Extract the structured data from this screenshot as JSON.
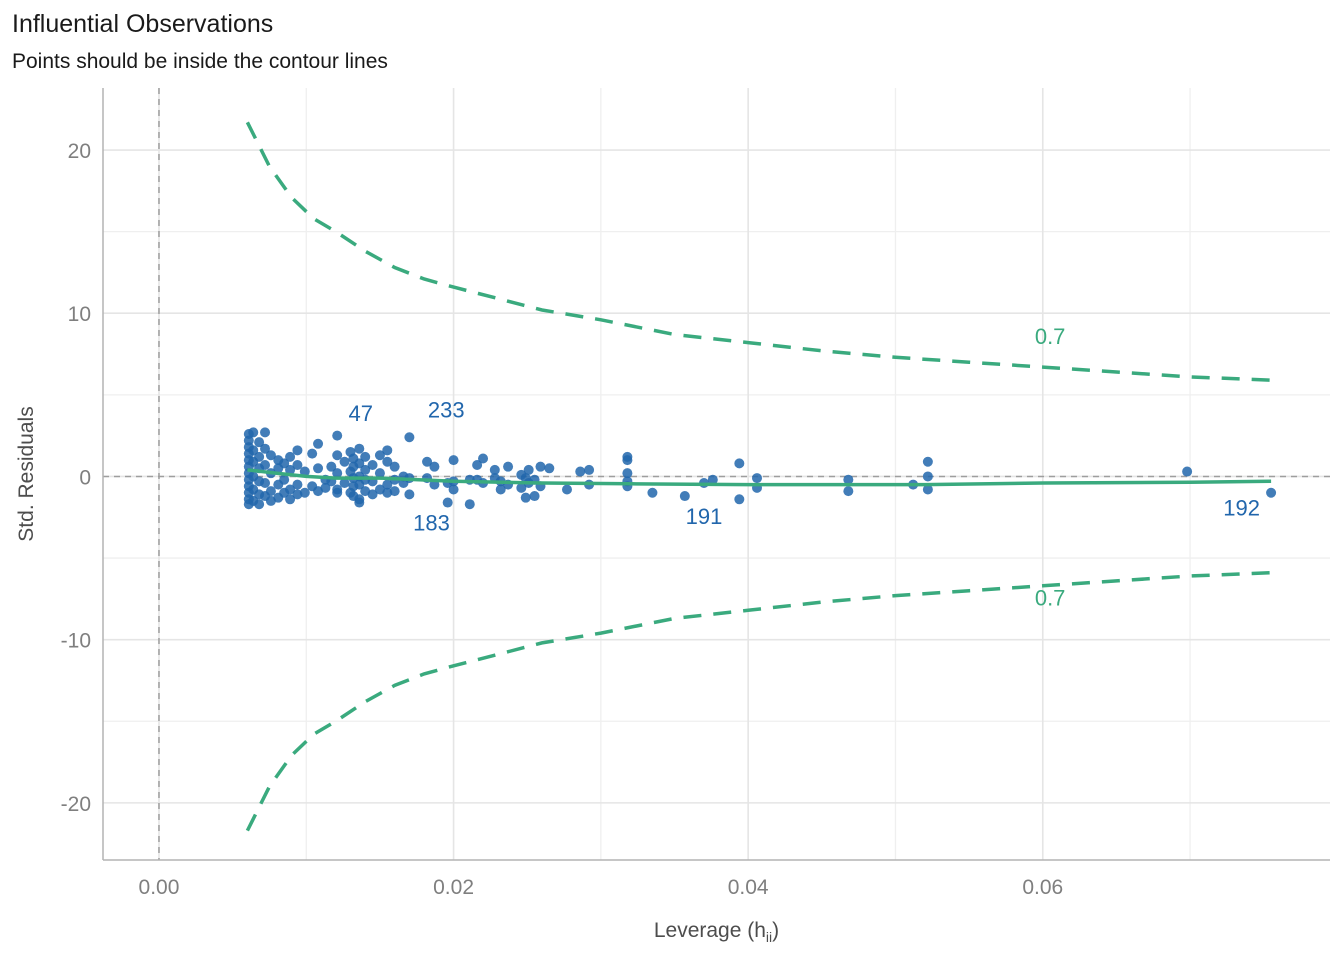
{
  "chart_data": {
    "type": "scatter",
    "title": "Influential Observations",
    "subtitle": "Points should be inside the contour lines",
    "xlabel": "Leverage (h",
    "xlabel_sub": "ii",
    "xlabel_close": ")",
    "ylabel": "Std. Residuals",
    "xlim": [
      -0.0038,
      0.0795
    ],
    "ylim": [
      -23.5,
      23.8
    ],
    "x_ticks": [
      0.0,
      0.02,
      0.04,
      0.06
    ],
    "x_tick_labels": [
      "0.00",
      "0.02",
      "0.04",
      "0.06"
    ],
    "y_ticks": [
      -20,
      -10,
      0,
      10,
      20
    ],
    "y_tick_labels": [
      "-20",
      "-10",
      "0",
      "10",
      "20"
    ],
    "grid": true,
    "reference_lines": {
      "x": 0,
      "y": 0
    },
    "colors": {
      "points": "#2166ac",
      "fit": "#3aaa7e",
      "contour": "#3aaa7e",
      "reference": "#9e9e9e",
      "grid": "#e5e5e5",
      "tick_text": "#7f7f7f"
    },
    "contour_level_label": "0.7",
    "contour_upper": [
      [
        0.006,
        21.7
      ],
      [
        0.0075,
        19.0
      ],
      [
        0.009,
        17.1
      ],
      [
        0.0105,
        15.8
      ],
      [
        0.012,
        15.0
      ],
      [
        0.014,
        13.8
      ],
      [
        0.016,
        12.8
      ],
      [
        0.018,
        12.1
      ],
      [
        0.02,
        11.6
      ],
      [
        0.023,
        10.9
      ],
      [
        0.026,
        10.2
      ],
      [
        0.03,
        9.6
      ],
      [
        0.035,
        8.7
      ],
      [
        0.04,
        8.2
      ],
      [
        0.045,
        7.7
      ],
      [
        0.05,
        7.3
      ],
      [
        0.055,
        7.0
      ],
      [
        0.06,
        6.7
      ],
      [
        0.065,
        6.4
      ],
      [
        0.07,
        6.1
      ],
      [
        0.0755,
        5.9
      ]
    ],
    "contour_lower": [
      [
        0.006,
        -21.7
      ],
      [
        0.0075,
        -19.0
      ],
      [
        0.009,
        -17.1
      ],
      [
        0.0105,
        -15.8
      ],
      [
        0.012,
        -15.0
      ],
      [
        0.014,
        -13.8
      ],
      [
        0.016,
        -12.8
      ],
      [
        0.018,
        -12.1
      ],
      [
        0.02,
        -11.6
      ],
      [
        0.023,
        -10.9
      ],
      [
        0.026,
        -10.2
      ],
      [
        0.03,
        -9.6
      ],
      [
        0.035,
        -8.7
      ],
      [
        0.04,
        -8.2
      ],
      [
        0.045,
        -7.7
      ],
      [
        0.05,
        -7.3
      ],
      [
        0.055,
        -7.0
      ],
      [
        0.06,
        -6.7
      ],
      [
        0.065,
        -6.4
      ],
      [
        0.07,
        -6.1
      ],
      [
        0.0755,
        -5.9
      ]
    ],
    "contour_label_positions": [
      [
        0.0605,
        8.1
      ],
      [
        0.0605,
        -7.9
      ]
    ],
    "fit_line": [
      [
        0.006,
        0.4
      ],
      [
        0.008,
        0.2
      ],
      [
        0.01,
        0.0
      ],
      [
        0.012,
        -0.1
      ],
      [
        0.015,
        -0.1
      ],
      [
        0.02,
        -0.3
      ],
      [
        0.026,
        -0.4
      ],
      [
        0.032,
        -0.45
      ],
      [
        0.04,
        -0.5
      ],
      [
        0.052,
        -0.5
      ],
      [
        0.06,
        -0.4
      ],
      [
        0.07,
        -0.35
      ],
      [
        0.0755,
        -0.3
      ]
    ],
    "points": [
      [
        0.0061,
        2.6
      ],
      [
        0.0061,
        2.2
      ],
      [
        0.0061,
        1.8
      ],
      [
        0.0061,
        1.4
      ],
      [
        0.0061,
        1.0
      ],
      [
        0.0061,
        0.6
      ],
      [
        0.0061,
        0.2
      ],
      [
        0.0061,
        -0.2
      ],
      [
        0.0061,
        -0.6
      ],
      [
        0.0061,
        -1.0
      ],
      [
        0.0061,
        -1.4
      ],
      [
        0.0061,
        -1.7
      ],
      [
        0.0064,
        2.7
      ],
      [
        0.0064,
        1.6
      ],
      [
        0.0064,
        0.9
      ],
      [
        0.0064,
        0.0
      ],
      [
        0.0064,
        -0.8
      ],
      [
        0.0064,
        -1.5
      ],
      [
        0.0068,
        2.1
      ],
      [
        0.0068,
        1.2
      ],
      [
        0.0068,
        0.5
      ],
      [
        0.0068,
        -0.3
      ],
      [
        0.0068,
        -1.1
      ],
      [
        0.0068,
        -1.7
      ],
      [
        0.0072,
        2.7
      ],
      [
        0.0072,
        1.7
      ],
      [
        0.0072,
        0.7
      ],
      [
        0.0072,
        -0.4
      ],
      [
        0.0072,
        -1.2
      ],
      [
        0.0076,
        1.3
      ],
      [
        0.0076,
        0.2
      ],
      [
        0.0076,
        -0.9
      ],
      [
        0.0076,
        -1.5
      ],
      [
        0.0081,
        1.0
      ],
      [
        0.0081,
        0.5
      ],
      [
        0.0081,
        -0.5
      ],
      [
        0.0081,
        -1.3
      ],
      [
        0.0085,
        0.8
      ],
      [
        0.0085,
        -0.2
      ],
      [
        0.0085,
        -1.0
      ],
      [
        0.0089,
        1.2
      ],
      [
        0.0089,
        0.4
      ],
      [
        0.0089,
        -0.8
      ],
      [
        0.0089,
        -1.4
      ],
      [
        0.0094,
        1.6
      ],
      [
        0.0094,
        0.7
      ],
      [
        0.0094,
        -0.5
      ],
      [
        0.0094,
        -1.1
      ],
      [
        0.0099,
        0.3
      ],
      [
        0.0099,
        -1.0
      ],
      [
        0.0104,
        1.4
      ],
      [
        0.0104,
        -0.6
      ],
      [
        0.0108,
        2.0
      ],
      [
        0.0108,
        0.5
      ],
      [
        0.0108,
        -0.9
      ],
      [
        0.0113,
        -0.2
      ],
      [
        0.0113,
        -0.7
      ],
      [
        0.0117,
        0.6
      ],
      [
        0.0117,
        -0.3
      ],
      [
        0.0121,
        2.5
      ],
      [
        0.0121,
        1.3
      ],
      [
        0.0121,
        0.2
      ],
      [
        0.0121,
        -0.8
      ],
      [
        0.0121,
        -1.0
      ],
      [
        0.0126,
        0.9
      ],
      [
        0.0126,
        -0.4
      ],
      [
        0.013,
        1.5
      ],
      [
        0.013,
        0.3
      ],
      [
        0.013,
        -1.0
      ],
      [
        0.0132,
        1.1
      ],
      [
        0.0132,
        0.6
      ],
      [
        0.0132,
        -0.1
      ],
      [
        0.0132,
        -0.6
      ],
      [
        0.0132,
        -1.2
      ],
      [
        0.0136,
        1.7
      ],
      [
        0.0136,
        0.8
      ],
      [
        0.0136,
        0.0
      ],
      [
        0.0136,
        -0.5
      ],
      [
        0.0136,
        -1.4
      ],
      [
        0.0136,
        -1.6
      ],
      [
        0.014,
        1.2
      ],
      [
        0.014,
        0.4
      ],
      [
        0.014,
        -0.2
      ],
      [
        0.014,
        -0.9
      ],
      [
        0.0145,
        0.7
      ],
      [
        0.0145,
        -0.3
      ],
      [
        0.0145,
        -1.1
      ],
      [
        0.015,
        1.3
      ],
      [
        0.015,
        0.2
      ],
      [
        0.015,
        -0.8
      ],
      [
        0.0155,
        1.6
      ],
      [
        0.0155,
        0.9
      ],
      [
        0.0155,
        -0.5
      ],
      [
        0.0155,
        -1.0
      ],
      [
        0.016,
        0.6
      ],
      [
        0.016,
        -0.2
      ],
      [
        0.016,
        -0.9
      ],
      [
        0.0166,
        0.0
      ],
      [
        0.0166,
        -0.4
      ],
      [
        0.017,
        2.4
      ],
      [
        0.017,
        -0.1
      ],
      [
        0.017,
        -1.1
      ],
      [
        0.0182,
        0.9
      ],
      [
        0.0182,
        -0.1
      ],
      [
        0.0187,
        -0.5
      ],
      [
        0.0187,
        0.6
      ],
      [
        0.0196,
        -1.6
      ],
      [
        0.0196,
        -0.4
      ],
      [
        0.02,
        1.0
      ],
      [
        0.02,
        -0.3
      ],
      [
        0.02,
        -0.8
      ],
      [
        0.0211,
        -1.7
      ],
      [
        0.0211,
        -0.2
      ],
      [
        0.0216,
        0.7
      ],
      [
        0.0216,
        -0.2
      ],
      [
        0.022,
        1.1
      ],
      [
        0.022,
        -0.4
      ],
      [
        0.0228,
        0.4
      ],
      [
        0.0228,
        -0.1
      ],
      [
        0.0232,
        -0.8
      ],
      [
        0.0232,
        -0.3
      ],
      [
        0.0237,
        0.6
      ],
      [
        0.0237,
        -0.5
      ],
      [
        0.0246,
        0.1
      ],
      [
        0.0246,
        -0.7
      ],
      [
        0.0249,
        -1.3
      ],
      [
        0.0249,
        -0.1
      ],
      [
        0.0251,
        0.4
      ],
      [
        0.0251,
        -0.4
      ],
      [
        0.0255,
        -1.2
      ],
      [
        0.0255,
        -0.2
      ],
      [
        0.0259,
        0.6
      ],
      [
        0.0259,
        -0.6
      ],
      [
        0.0265,
        0.5
      ],
      [
        0.0277,
        -0.8
      ],
      [
        0.0286,
        0.3
      ],
      [
        0.0292,
        0.4
      ],
      [
        0.0292,
        -0.5
      ],
      [
        0.0318,
        1.2
      ],
      [
        0.0318,
        1.0
      ],
      [
        0.0318,
        0.2
      ],
      [
        0.0318,
        -0.3
      ],
      [
        0.0318,
        -0.6
      ],
      [
        0.0335,
        -1.0
      ],
      [
        0.0357,
        -1.2
      ],
      [
        0.037,
        -0.4
      ],
      [
        0.0376,
        -0.2
      ],
      [
        0.0394,
        0.8
      ],
      [
        0.0394,
        -1.4
      ],
      [
        0.0406,
        -0.1
      ],
      [
        0.0406,
        -0.7
      ],
      [
        0.0468,
        -0.2
      ],
      [
        0.0468,
        -0.9
      ],
      [
        0.0512,
        -0.5
      ],
      [
        0.0522,
        0.9
      ],
      [
        0.0522,
        0.0
      ],
      [
        0.0522,
        -0.8
      ],
      [
        0.0698,
        0.3
      ],
      [
        0.0755,
        -1.0
      ]
    ],
    "labeled_points": [
      {
        "label": "47",
        "x": 0.0137,
        "y": 3.4
      },
      {
        "label": "233",
        "x": 0.0195,
        "y": 3.6
      },
      {
        "label": "183",
        "x": 0.0185,
        "y": -3.3
      },
      {
        "label": "191",
        "x": 0.037,
        "y": -2.9
      },
      {
        "label": "192",
        "x": 0.0735,
        "y": -2.4
      }
    ]
  }
}
